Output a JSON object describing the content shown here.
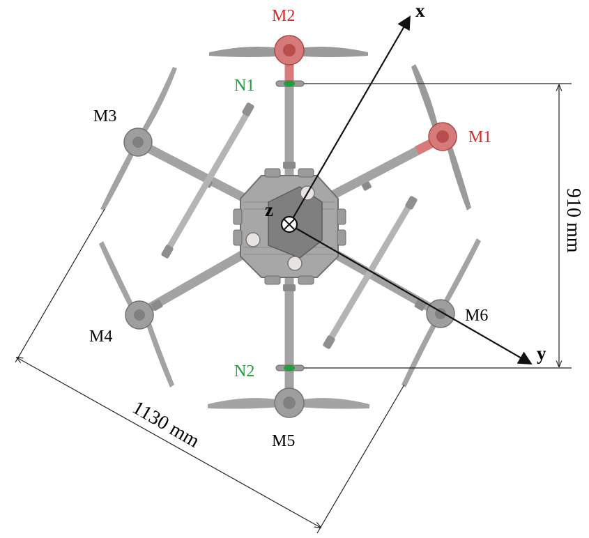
{
  "colors": {
    "highlight": "#d42b2b",
    "node": "#1f9e3a",
    "label": "#000000",
    "frame": "#a5a5a5",
    "frame_dark": "#7c7c7c",
    "hub": "#8d8d8d",
    "motor_red": "#d77a7a"
  },
  "motors": {
    "m1": "M1",
    "m2": "M2",
    "m3": "M3",
    "m4": "M4",
    "m5": "M5",
    "m6": "M6"
  },
  "nodes": {
    "n1": "N1",
    "n2": "N2"
  },
  "axes": {
    "x": "x",
    "y": "y",
    "z": "z"
  },
  "dimensions": {
    "height": "910 mm",
    "span": "1130 mm"
  }
}
